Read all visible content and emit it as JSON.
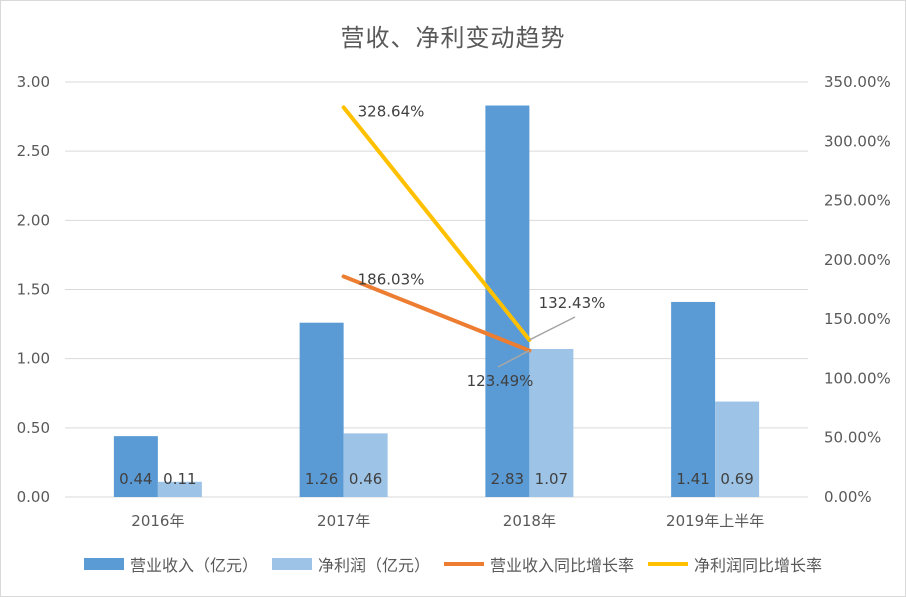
{
  "colors": {
    "revenue": "#5b9bd5",
    "profit": "#9dc3e6",
    "revenue_growth": "#ed7d31",
    "profit_growth": "#ffc000",
    "grid": "#d9d9d9",
    "leader": "#a6a6a6"
  },
  "chart_data": {
    "type": "bar",
    "title": "营收、净利变动趋势",
    "categories": [
      "2016年",
      "2017年",
      "2018年",
      "2019年上半年"
    ],
    "y_left": {
      "ylim": [
        0,
        3
      ],
      "ticks": [
        "0.00",
        "0.50",
        "1.00",
        "1.50",
        "2.00",
        "2.50",
        "3.00"
      ]
    },
    "y_right": {
      "ylim": [
        0,
        3.5
      ],
      "ticks": [
        "0.00%",
        "50.00%",
        "100.00%",
        "150.00%",
        "200.00%",
        "250.00%",
        "300.00%",
        "350.00%"
      ]
    },
    "series": [
      {
        "name": "营业收入（亿元）",
        "type": "bar",
        "axis": "left",
        "values": [
          0.44,
          1.26,
          2.83,
          1.41
        ],
        "labels": [
          "0.44",
          "1.26",
          "2.83",
          "1.41"
        ]
      },
      {
        "name": "净利润（亿元）",
        "type": "bar",
        "axis": "left",
        "values": [
          0.11,
          0.46,
          1.07,
          0.69
        ],
        "labels": [
          "0.11",
          "0.46",
          "1.07",
          "0.69"
        ]
      },
      {
        "name": "营业收入同比增长率",
        "type": "line",
        "axis": "right",
        "values": [
          null,
          1.8603,
          1.2349,
          null
        ],
        "labels": [
          "",
          "186.03%",
          "123.49%",
          ""
        ]
      },
      {
        "name": "净利润同比增长率",
        "type": "line",
        "axis": "right",
        "values": [
          null,
          3.2864,
          1.3243,
          null
        ],
        "labels": [
          "",
          "328.64%",
          "132.43%",
          ""
        ]
      }
    ],
    "grid": true,
    "legend": "bottom"
  }
}
